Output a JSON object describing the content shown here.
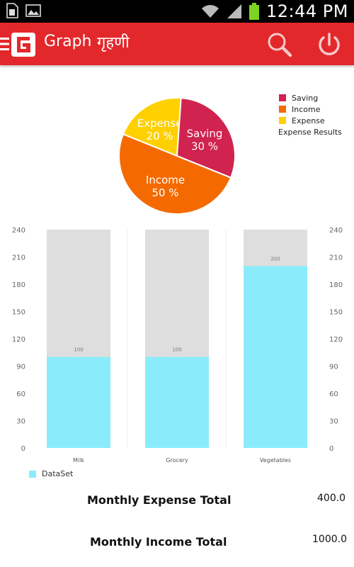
{
  "status_bar": {
    "clock": "12:44 PM",
    "icons": [
      "sim-card-icon",
      "image-icon",
      "wifi-icon",
      "signal-icon",
      "battery-icon"
    ]
  },
  "action_bar": {
    "title": "Graph",
    "subtitle": "गृहणी",
    "logo_letter": "G",
    "colors": {
      "bar": "#e3282c",
      "icon": "#ffffff"
    }
  },
  "pie_chart": {
    "legend": [
      {
        "label": "Saving",
        "color": "#d0234f"
      },
      {
        "label": "Income",
        "color": "#f56a00"
      },
      {
        "label": "Expense",
        "color": "#ffd000"
      }
    ],
    "legend_caption": "Expense Results"
  },
  "chart_data": [
    {
      "type": "pie",
      "slices": [
        {
          "label": "Expense",
          "percent": 20,
          "value_text": "20 %",
          "color": "#ffd000"
        },
        {
          "label": "Saving",
          "percent": 30,
          "value_text": "30 %",
          "color": "#d0234f"
        },
        {
          "label": "Income",
          "percent": 50,
          "value_text": "50 %",
          "color": "#f56a00"
        }
      ],
      "legend": [
        "Saving",
        "Income",
        "Expense"
      ],
      "legend_caption": "Expense Results"
    },
    {
      "type": "bar",
      "categories": [
        "Milk",
        "Grocery",
        "Vegetables"
      ],
      "series": [
        {
          "name": "DataSet",
          "values": [
            100,
            100,
            200
          ],
          "color": "#8aecfa"
        }
      ],
      "value_labels": [
        "100",
        "100",
        "200"
      ],
      "ylim": [
        0,
        240
      ],
      "yticks": [
        0,
        30,
        60,
        90,
        120,
        150,
        180,
        210,
        240
      ],
      "background_color": "#dedede",
      "legend_position": "bottom-left"
    }
  ],
  "totals": {
    "expense_label": "Monthly Expense Total",
    "expense_value": "400.0",
    "income_label": "Monthly Income Total",
    "income_value": "1000.0"
  }
}
